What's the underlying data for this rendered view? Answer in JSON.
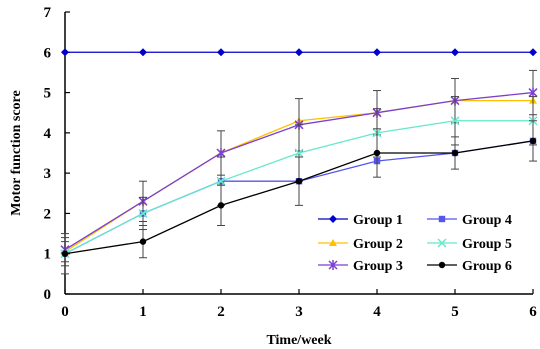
{
  "chart_data": {
    "type": "line",
    "title": "",
    "xlabel": "Time/week",
    "ylabel": "Motor function score",
    "x": [
      0,
      1,
      2,
      3,
      4,
      5,
      6
    ],
    "xlim": [
      0,
      6
    ],
    "ylim": [
      0,
      7
    ],
    "x_ticks": [
      "0",
      "1",
      "2",
      "3",
      "4",
      "5",
      "6"
    ],
    "y_ticks": [
      "0",
      "1",
      "2",
      "3",
      "4",
      "5",
      "6",
      "7"
    ],
    "grid": false,
    "legend_position": "bottom-right",
    "series": [
      {
        "name": "Group 1",
        "color": "#0000cc",
        "marker": "diamond",
        "values": [
          6,
          6,
          6,
          6,
          6,
          6,
          6
        ],
        "errors": [
          0,
          0,
          0,
          0,
          0,
          0,
          0
        ]
      },
      {
        "name": "Group 2",
        "color": "#ffc000",
        "marker": "triangle",
        "values": [
          1.05,
          2.3,
          3.5,
          4.3,
          4.5,
          4.8,
          4.8
        ],
        "errors": [
          0,
          0,
          0,
          0,
          0,
          0,
          0
        ]
      },
      {
        "name": "Group 3",
        "color": "#7b3fd1",
        "marker": "asterisk",
        "values": [
          1.1,
          2.3,
          3.5,
          4.2,
          4.5,
          4.8,
          5.0
        ],
        "errors": [
          0.3,
          0.5,
          0.55,
          0.65,
          0.55,
          0.55,
          0.55
        ]
      },
      {
        "name": "Group 4",
        "color": "#5555ee",
        "marker": "square",
        "values": [
          1.0,
          2.0,
          2.8,
          2.8,
          3.3,
          3.5,
          3.8
        ],
        "errors": [
          0,
          0,
          0,
          0,
          0,
          0,
          0
        ]
      },
      {
        "name": "Group 5",
        "color": "#66e8cc",
        "marker": "x",
        "values": [
          1.0,
          2.0,
          2.8,
          3.5,
          4.0,
          4.3,
          4.3
        ],
        "errors": [
          0.3,
          0.4,
          0.6,
          0.7,
          0.6,
          0.6,
          0.6
        ]
      },
      {
        "name": "Group 6",
        "color": "#000000",
        "marker": "circle",
        "values": [
          1.0,
          1.3,
          2.2,
          2.8,
          3.5,
          3.5,
          3.8
        ],
        "errors": [
          0.5,
          0.4,
          0.5,
          0.6,
          0.6,
          0.4,
          0.5
        ]
      }
    ]
  }
}
